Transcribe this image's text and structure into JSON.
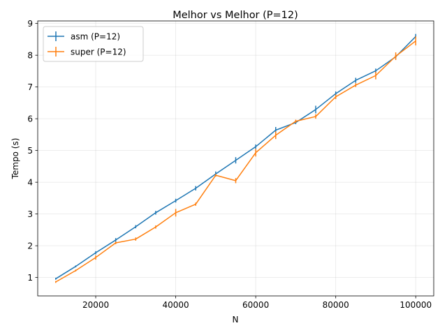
{
  "chart_data": {
    "type": "line",
    "title": "Melhor vs Melhor (P=12)",
    "xlabel": "N",
    "ylabel": "Tempo (s)",
    "xlim": [
      5500,
      104500
    ],
    "ylim": [
      0.42,
      9.08
    ],
    "xticks": [
      20000,
      40000,
      60000,
      80000,
      100000
    ],
    "xtick_labels": [
      "20000",
      "40000",
      "60000",
      "80000",
      "100000"
    ],
    "yticks": [
      1,
      2,
      3,
      4,
      5,
      6,
      7,
      8,
      9
    ],
    "ytick_labels": [
      "1",
      "2",
      "3",
      "4",
      "5",
      "6",
      "7",
      "8",
      "9"
    ],
    "grid": true,
    "legend_position": "top-left",
    "x": [
      10000,
      15000,
      20000,
      25000,
      30000,
      35000,
      40000,
      45000,
      50000,
      55000,
      60000,
      65000,
      70000,
      75000,
      80000,
      85000,
      90000,
      95000,
      100000
    ],
    "series": [
      {
        "name": "asm (P=12)",
        "color": "#1f77b4",
        "values": [
          0.96,
          1.35,
          1.78,
          2.18,
          2.6,
          3.04,
          3.42,
          3.81,
          4.26,
          4.69,
          5.12,
          5.64,
          5.88,
          6.29,
          6.79,
          7.21,
          7.51,
          7.95,
          8.59
        ],
        "errors": [
          0.03,
          0.03,
          0.05,
          0.06,
          0.05,
          0.06,
          0.06,
          0.07,
          0.08,
          0.1,
          0.07,
          0.1,
          0.05,
          0.12,
          0.07,
          0.08,
          0.07,
          0.05,
          0.08
        ]
      },
      {
        "name": "super (P=12)",
        "color": "#ff7f0e",
        "values": [
          0.86,
          1.22,
          1.63,
          2.09,
          2.21,
          2.59,
          3.04,
          3.31,
          4.22,
          4.05,
          4.93,
          5.48,
          5.92,
          6.07,
          6.69,
          7.06,
          7.36,
          7.97,
          8.45
        ],
        "errors": [
          0.03,
          0.03,
          0.07,
          0.04,
          0.05,
          0.05,
          0.12,
          0.05,
          0.04,
          0.08,
          0.12,
          0.12,
          0.05,
          0.07,
          0.07,
          0.06,
          0.12,
          0.12,
          0.14
        ]
      }
    ]
  }
}
